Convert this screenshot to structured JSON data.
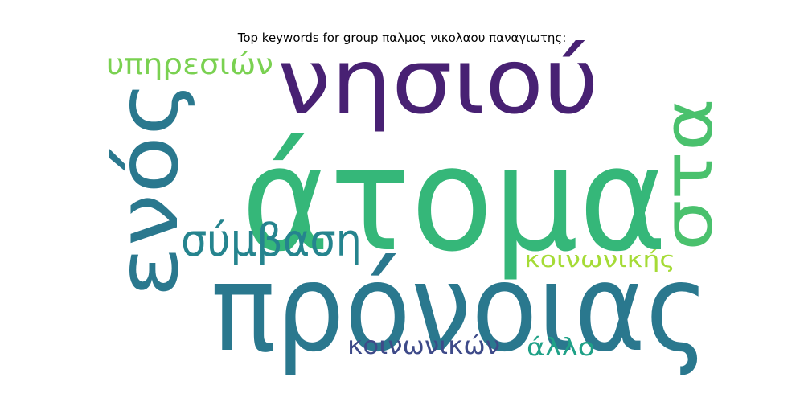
{
  "title": "Top keywords for group παλμος νικολαου παναγιωτης:",
  "words": [
    {
      "text": "άτομα",
      "color": "#35b779"
    },
    {
      "text": "πρόνοιας",
      "color": "#2a788e"
    },
    {
      "text": "νησιού",
      "color": "#482173"
    },
    {
      "text": "ενός",
      "color": "#2a788e"
    },
    {
      "text": "στα",
      "color": "#4ac16d"
    },
    {
      "text": "σύμβαση",
      "color": "#25848e"
    },
    {
      "text": "υπηρεσιών",
      "color": "#7ad151"
    },
    {
      "text": "κοινωνικής",
      "color": "#a5db36"
    },
    {
      "text": "κοινωνικών",
      "color": "#3e4a89"
    },
    {
      "text": "άλλο",
      "color": "#1fa187"
    }
  ]
}
